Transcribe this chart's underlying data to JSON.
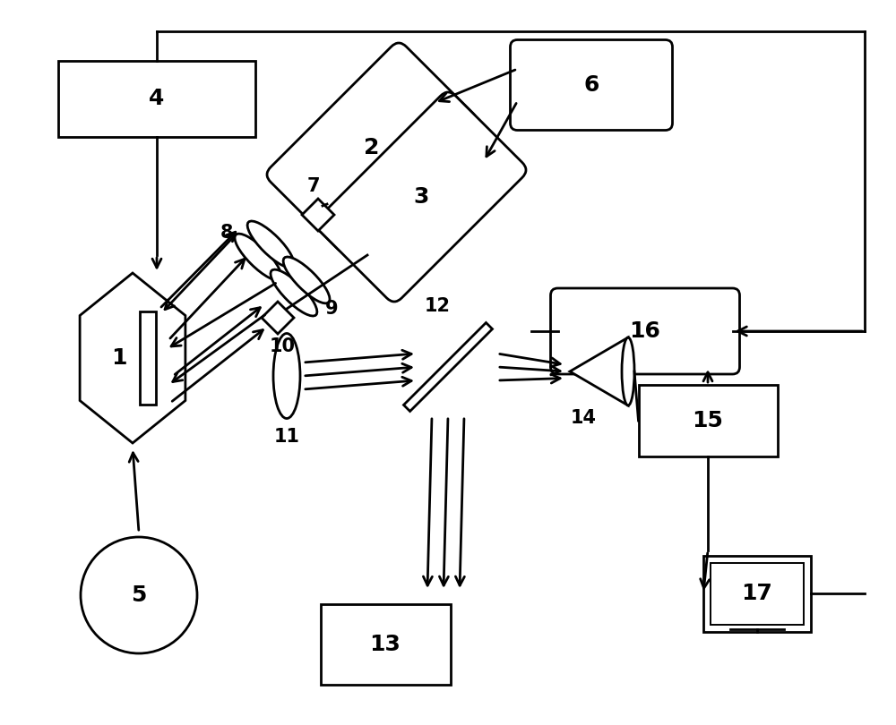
{
  "bg_color": "#ffffff",
  "lc": "#000000",
  "lw": 2.0,
  "fontsize_large": 18,
  "fontsize_medium": 15,
  "figsize": [
    10.0,
    8.1
  ],
  "dpi": 100
}
